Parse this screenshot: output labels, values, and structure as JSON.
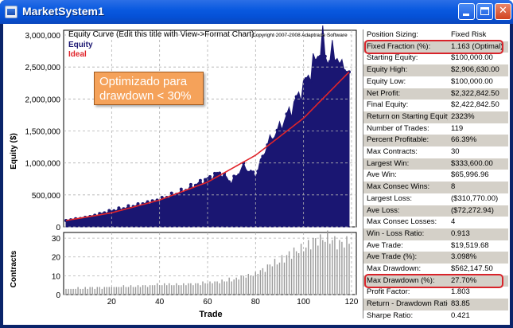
{
  "window": {
    "title": "MarketSystem1",
    "buttons": {
      "minimize": "minimize",
      "maximize": "maximize",
      "close": "✕"
    }
  },
  "chart": {
    "title": "Equity Curve (Edit this title with View->Format Chart)",
    "copyright": "Copyright 2007-2008 Adaptrade Software",
    "annotation_line1": "Optimizado para",
    "annotation_line2": "drawdown < 30%",
    "x_label": "Trade",
    "y_label_top": "Equity ($)",
    "y_label_bottom": "Contracts",
    "y_ticks_top": [
      "0",
      "500,000",
      "1,000,000",
      "1,500,000",
      "2,000,000",
      "2,500,000",
      "3,000,000"
    ],
    "y_ticks_bottom": [
      "0",
      "10",
      "20",
      "30"
    ],
    "x_ticks": [
      "20",
      "40",
      "60",
      "80",
      "100",
      "120"
    ],
    "colors": {
      "equity": "#1a1672",
      "ideal": "#e0242a",
      "contracts": "#9a9a9a",
      "grid": "#b0b0b0"
    }
  },
  "chart_data": [
    {
      "type": "area",
      "title": "Equity Curve (Edit this title with View->Format Chart)",
      "xlabel": "Trade",
      "ylabel": "Equity ($)",
      "xlim": [
        0,
        122
      ],
      "ylim": [
        0,
        3000000
      ],
      "grid": true,
      "legend_position": "top-left",
      "series": [
        {
          "name": "Equity",
          "x": [
            1,
            10,
            20,
            30,
            40,
            50,
            60,
            65,
            70,
            75,
            80,
            85,
            90,
            95,
            100,
            103,
            106,
            108,
            110,
            113,
            116,
            119
          ],
          "values": [
            100000,
            150000,
            250000,
            330000,
            420000,
            560000,
            750000,
            850000,
            700000,
            950000,
            800000,
            1300000,
            1550000,
            1850000,
            2200000,
            2450000,
            2700000,
            2906630,
            2600000,
            2750000,
            2450000,
            2422842
          ]
        },
        {
          "name": "Ideal",
          "x": [
            1,
            20,
            40,
            60,
            80,
            100,
            119
          ],
          "values": [
            100000,
            220000,
            420000,
            700000,
            1120000,
            1700000,
            2422842
          ]
        }
      ]
    },
    {
      "type": "bar",
      "xlabel": "Trade",
      "ylabel": "Contracts",
      "xlim": [
        0,
        122
      ],
      "ylim": [
        0,
        33
      ],
      "x": [
        1,
        20,
        40,
        60,
        70,
        80,
        85,
        90,
        95,
        100,
        105,
        110,
        115,
        119
      ],
      "values": [
        3,
        4,
        5,
        6,
        8,
        11,
        15,
        18,
        22,
        25,
        29,
        30,
        27,
        28
      ]
    }
  ],
  "stats": [
    {
      "label": "Position Sizing:",
      "value": "Fixed Risk"
    },
    {
      "label": "Fixed Fraction (%):",
      "value": "1.163 (Optimal)"
    },
    {
      "label": "Starting Equity:",
      "value": "$100,000.00"
    },
    {
      "label": "Equity High:",
      "value": "$2,906,630.00"
    },
    {
      "label": "Equity Low:",
      "value": "$100,000.00"
    },
    {
      "label": "Net Profit:",
      "value": "$2,322,842.50"
    },
    {
      "label": "Final Equity:",
      "value": "$2,422,842.50"
    },
    {
      "label": "Return on Starting Equity:",
      "value": "2323%"
    },
    {
      "label": "Number of Trades:",
      "value": "119"
    },
    {
      "label": "Percent Profitable:",
      "value": "66.39%"
    },
    {
      "label": "Max Contracts:",
      "value": "30"
    },
    {
      "label": "Largest Win:",
      "value": "$333,600.00"
    },
    {
      "label": "Ave Win:",
      "value": "$65,996.96"
    },
    {
      "label": "Max Consec Wins:",
      "value": "8"
    },
    {
      "label": "Largest Loss:",
      "value": "($310,770.00)"
    },
    {
      "label": "Ave Loss:",
      "value": "($72,272.94)"
    },
    {
      "label": "Max Consec Losses:",
      "value": "4"
    },
    {
      "label": "Win - Loss Ratio:",
      "value": "0.913"
    },
    {
      "label": "Ave Trade:",
      "value": "$19,519.68"
    },
    {
      "label": "Ave Trade (%):",
      "value": "3.098%"
    },
    {
      "label": "Max Drawdown:",
      "value": "$562,147.50"
    },
    {
      "label": "Max Drawdown (%):",
      "value": "27.70%"
    },
    {
      "label": "Profit Factor:",
      "value": "1.803"
    },
    {
      "label": "Return - Drawdown Ratio:",
      "value": "83.85"
    },
    {
      "label": "Sharpe Ratio:",
      "value": "0.421"
    }
  ],
  "highlighted_rows": [
    "Fixed Fraction (%):",
    "Max Drawdown (%):"
  ]
}
